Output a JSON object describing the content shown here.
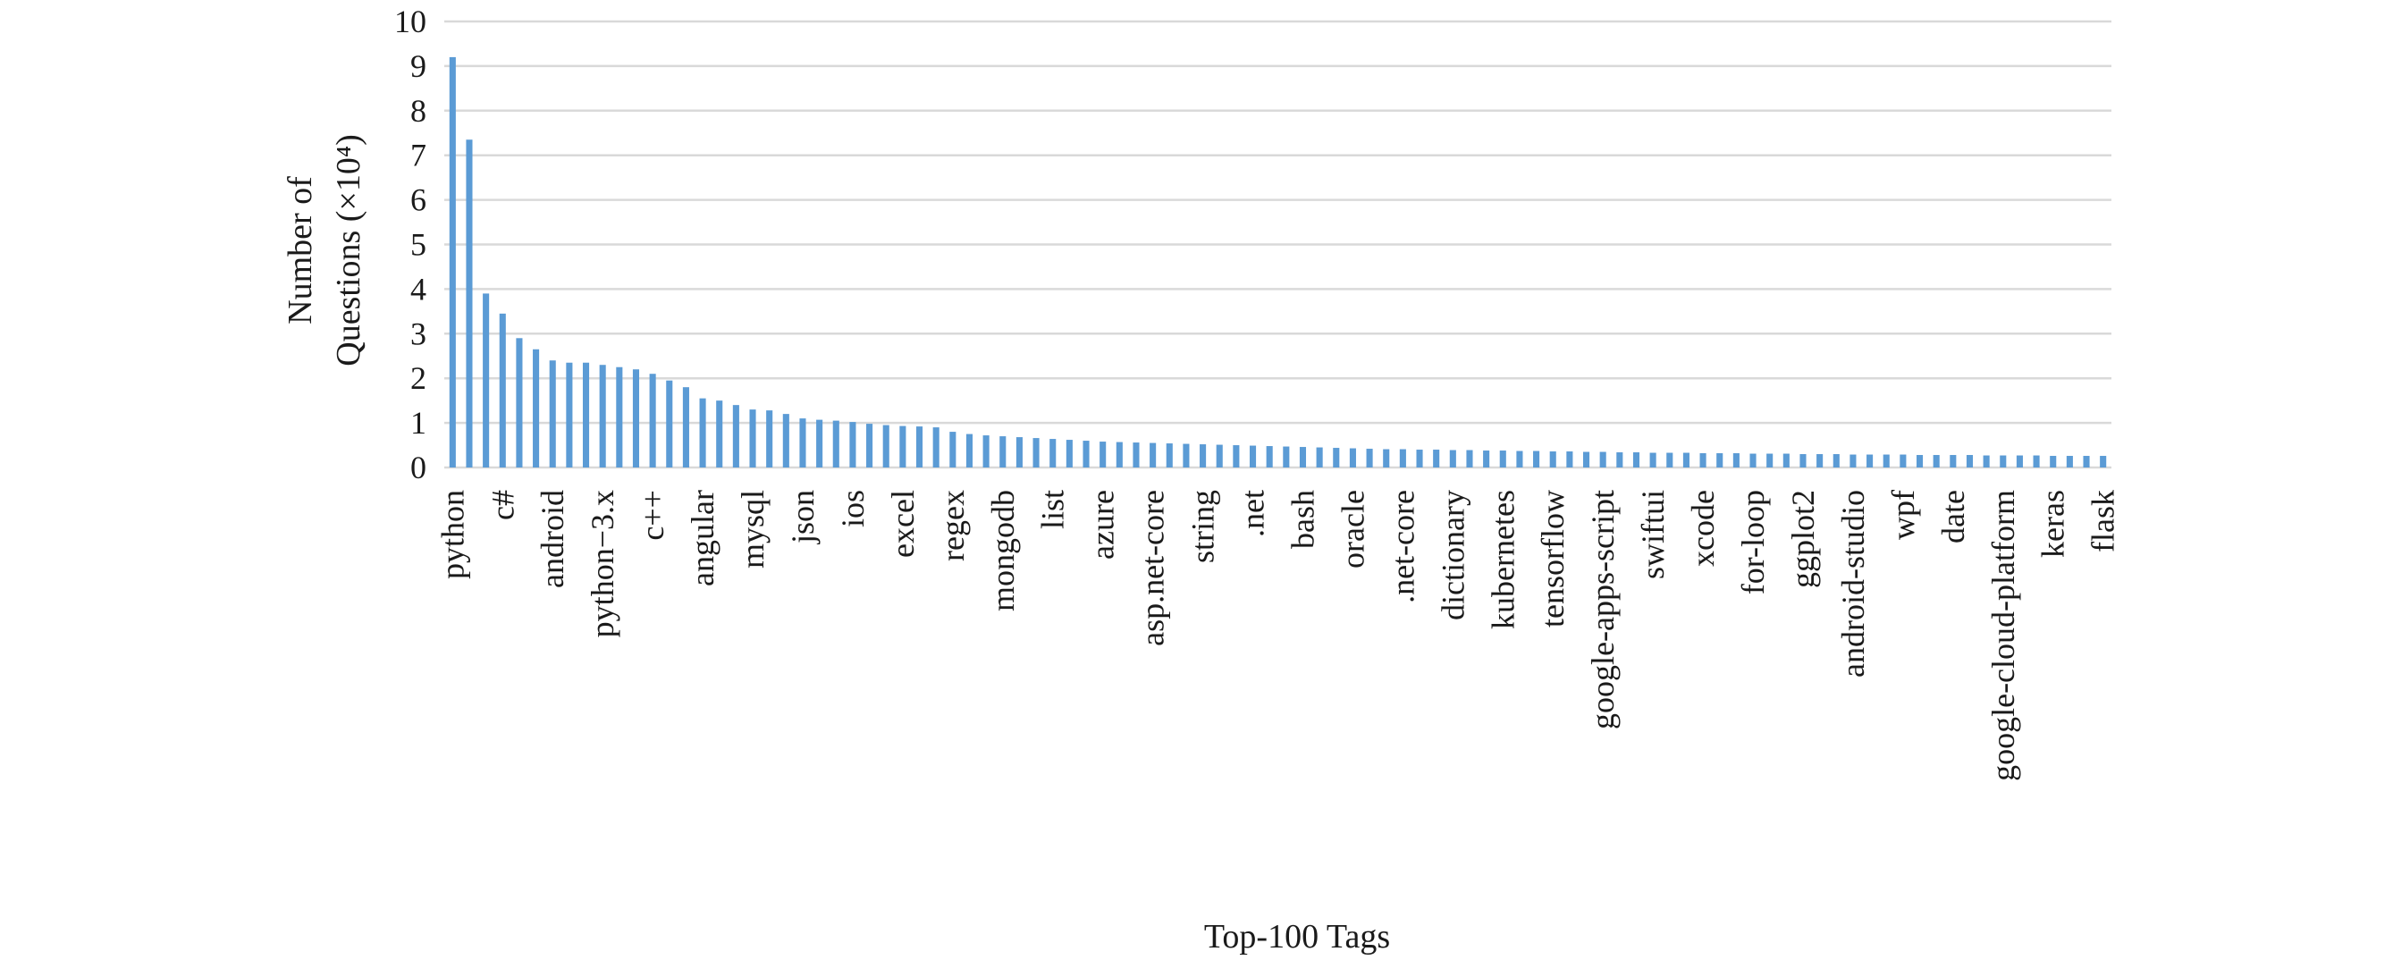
{
  "chart_data": {
    "type": "bar",
    "xlabel": "Top-100 Tags",
    "ylabel_line1": "Number of",
    "ylabel_line2": "Questions (×10⁴)",
    "ylim": [
      0,
      10
    ],
    "yticks": [
      0,
      1,
      2,
      3,
      4,
      5,
      6,
      7,
      8,
      9,
      10
    ],
    "grid": true,
    "bar_color": "#5b9bd5",
    "grid_color": "#d9d9d9",
    "n_bars": 100,
    "values": [
      9.2,
      7.35,
      3.9,
      3.45,
      2.9,
      2.65,
      2.4,
      2.35,
      2.35,
      2.3,
      2.25,
      2.2,
      2.1,
      1.95,
      1.8,
      1.55,
      1.5,
      1.4,
      1.3,
      1.28,
      1.2,
      1.1,
      1.07,
      1.05,
      1.02,
      0.98,
      0.95,
      0.93,
      0.92,
      0.9,
      0.8,
      0.75,
      0.72,
      0.7,
      0.68,
      0.66,
      0.64,
      0.62,
      0.6,
      0.58,
      0.57,
      0.56,
      0.55,
      0.54,
      0.53,
      0.52,
      0.51,
      0.5,
      0.49,
      0.48,
      0.47,
      0.46,
      0.45,
      0.44,
      0.43,
      0.42,
      0.41,
      0.41,
      0.4,
      0.4,
      0.39,
      0.39,
      0.38,
      0.38,
      0.37,
      0.37,
      0.36,
      0.36,
      0.35,
      0.35,
      0.34,
      0.34,
      0.33,
      0.33,
      0.33,
      0.32,
      0.32,
      0.32,
      0.31,
      0.31,
      0.31,
      0.3,
      0.3,
      0.3,
      0.29,
      0.29,
      0.29,
      0.29,
      0.28,
      0.28,
      0.28,
      0.28,
      0.27,
      0.27,
      0.27,
      0.27,
      0.26,
      0.26,
      0.26,
      0.26
    ],
    "category_labels": [
      {
        "index": 0,
        "text": "python"
      },
      {
        "index": 3,
        "text": "c#"
      },
      {
        "index": 6,
        "text": "android"
      },
      {
        "index": 9,
        "text": "python−3.x"
      },
      {
        "index": 12,
        "text": "c++"
      },
      {
        "index": 15,
        "text": "angular"
      },
      {
        "index": 18,
        "text": "mysql"
      },
      {
        "index": 21,
        "text": "json"
      },
      {
        "index": 24,
        "text": "ios"
      },
      {
        "index": 27,
        "text": "excel"
      },
      {
        "index": 30,
        "text": "regex"
      },
      {
        "index": 33,
        "text": "mongodb"
      },
      {
        "index": 36,
        "text": "list"
      },
      {
        "index": 39,
        "text": "azure"
      },
      {
        "index": 42,
        "text": "asp.net-core"
      },
      {
        "index": 45,
        "text": "string"
      },
      {
        "index": 48,
        "text": ".net"
      },
      {
        "index": 51,
        "text": "bash"
      },
      {
        "index": 54,
        "text": "oracle"
      },
      {
        "index": 57,
        "text": ".net-core"
      },
      {
        "index": 60,
        "text": "dictionary"
      },
      {
        "index": 63,
        "text": "kubernetes"
      },
      {
        "index": 66,
        "text": "tensorflow"
      },
      {
        "index": 69,
        "text": "google-apps-script"
      },
      {
        "index": 72,
        "text": "swiftui"
      },
      {
        "index": 75,
        "text": "xcode"
      },
      {
        "index": 78,
        "text": "for-loop"
      },
      {
        "index": 81,
        "text": "ggplot2"
      },
      {
        "index": 84,
        "text": "android-studio"
      },
      {
        "index": 87,
        "text": "wpf"
      },
      {
        "index": 90,
        "text": "date"
      },
      {
        "index": 93,
        "text": "google-cloud-platform"
      },
      {
        "index": 96,
        "text": "keras"
      },
      {
        "index": 99,
        "text": "flask"
      }
    ]
  }
}
